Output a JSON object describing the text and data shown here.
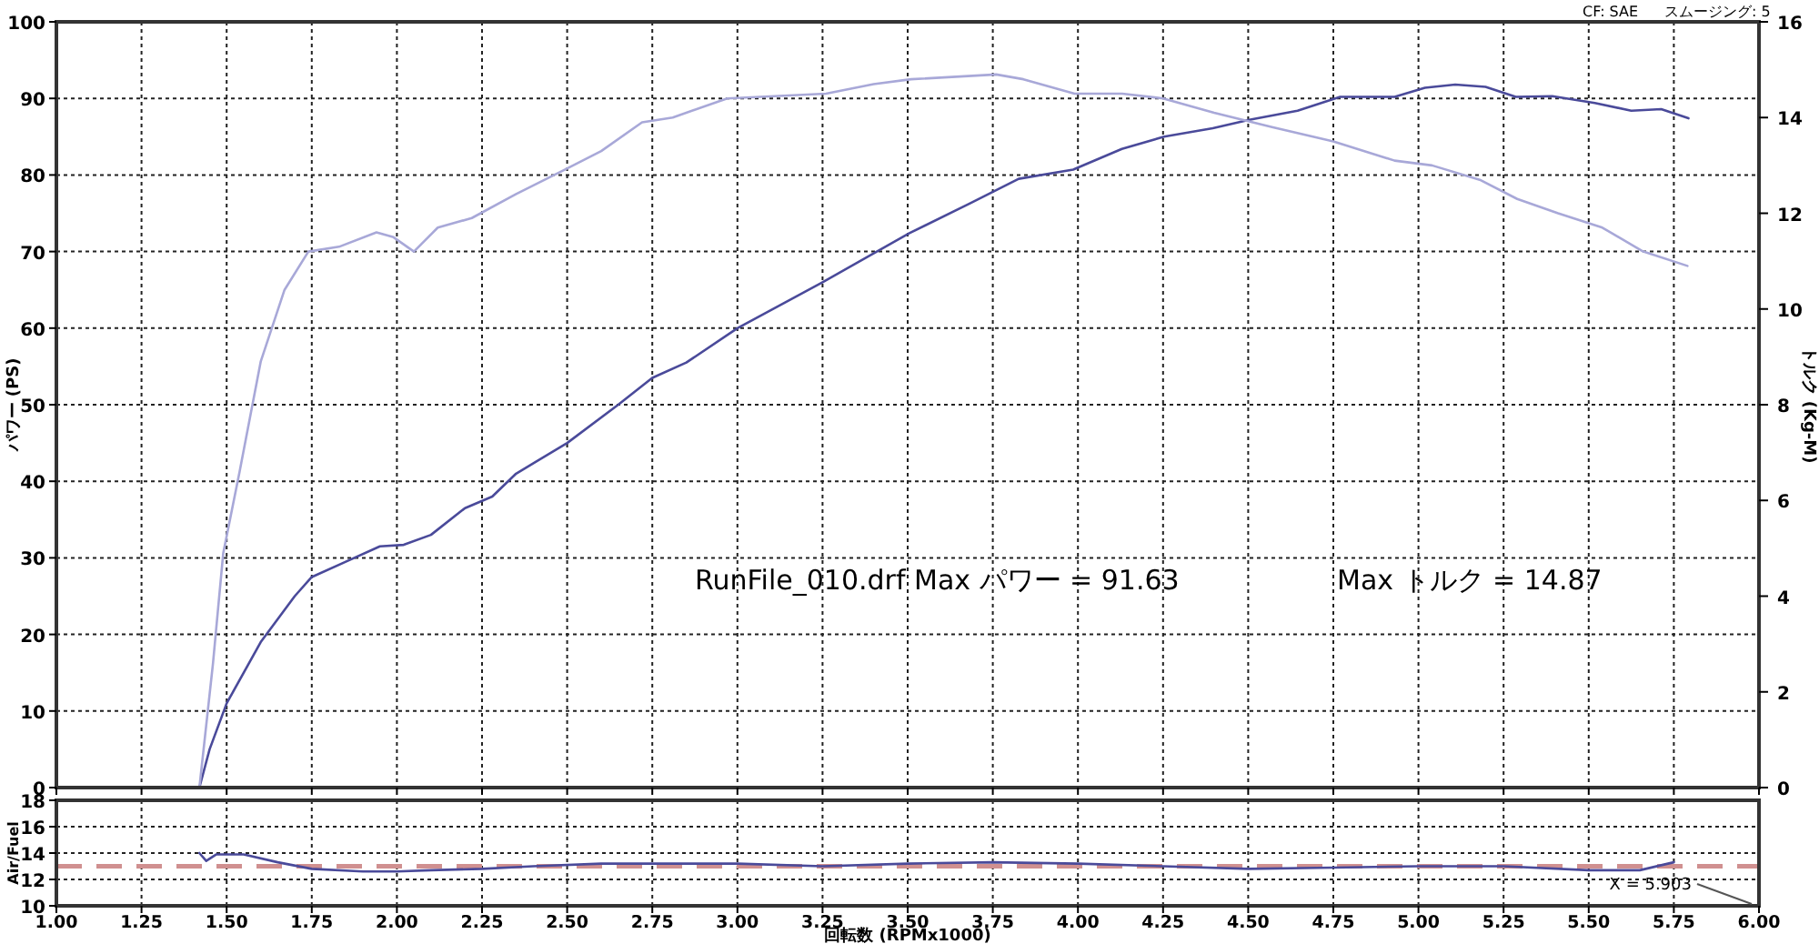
{
  "chart_data": [
    {
      "type": "line",
      "ylabel": "パワー (PS)",
      "y2label": "トルク (Kg-M)",
      "annotations": [
        "CF: SAE",
        "スムージング: 5",
        "RunFile_010.drf Max パワー = 91.63",
        "Max トルク = 14.87"
      ],
      "xlim": [
        1,
        6
      ],
      "xticks": [
        1,
        1.25,
        1.5,
        1.75,
        2,
        2.25,
        2.5,
        2.75,
        3,
        3.25,
        3.5,
        3.75,
        4,
        4.25,
        4.5,
        4.75,
        5,
        5.25,
        5.5,
        5.75,
        6
      ],
      "ylim": [
        0,
        100
      ],
      "yticks": [
        0,
        10,
        20,
        30,
        40,
        50,
        60,
        70,
        80,
        90,
        100
      ],
      "y2lim": [
        0,
        16
      ],
      "y2ticks": [
        0,
        2,
        4,
        6,
        8,
        10,
        12,
        14,
        16
      ],
      "tick_labels": "y",
      "grid": true,
      "line_style": "solid",
      "series": [
        {
          "axis": "y",
          "color": "#4a4a9a",
          "x": [
            1.42,
            1.45,
            1.5,
            1.6,
            1.7,
            1.75,
            1.85,
            1.95,
            2.02,
            2.1,
            2.2,
            2.28,
            2.35,
            2.5,
            2.65,
            2.75,
            2.85,
            3.0,
            3.25,
            3.505,
            3.683,
            3.826,
            3.986,
            4.129,
            4.253,
            4.396,
            4.503,
            4.645,
            4.77,
            4.93,
            5.019,
            5.108,
            5.197,
            5.286,
            5.393,
            5.518,
            5.625,
            5.713,
            5.793
          ],
          "values": [
            0,
            5,
            11,
            19,
            25,
            27.5,
            29.5,
            31.5,
            31.7,
            33,
            36.5,
            38,
            41,
            45,
            50,
            53.5,
            55.5,
            60,
            66,
            72.4,
            76.3,
            79.5,
            80.7,
            83.4,
            85,
            86.1,
            87.2,
            88.4,
            90.2,
            90.2,
            91.4,
            91.8,
            91.5,
            90.2,
            90.3,
            89.4,
            88.4,
            88.6,
            87.4
          ]
        },
        {
          "axis": "y2",
          "color": "#a8a8d8",
          "x": [
            1.42,
            1.46,
            1.49,
            1.538,
            1.6,
            1.67,
            1.74,
            1.83,
            1.94,
            1.99,
            2.05,
            2.12,
            2.22,
            2.35,
            2.49,
            2.6,
            2.72,
            2.81,
            2.97,
            3.26,
            3.4,
            3.51,
            3.76,
            3.84,
            3.99,
            4.13,
            4.25,
            4.4,
            4.57,
            4.75,
            4.93,
            5.04,
            5.18,
            5.29,
            5.41,
            5.54,
            5.66,
            5.79
          ],
          "values": [
            0,
            2.6,
            4.9,
            6.6,
            8.9,
            10.4,
            11.2,
            11.3,
            11.6,
            11.5,
            11.2,
            11.7,
            11.9,
            12.4,
            12.9,
            13.3,
            13.9,
            14.0,
            14.4,
            14.5,
            14.7,
            14.8,
            14.9,
            14.8,
            14.5,
            14.5,
            14.4,
            14.1,
            13.8,
            13.5,
            13.1,
            13.0,
            12.7,
            12.3,
            12.0,
            11.7,
            11.2,
            10.9
          ]
        }
      ]
    },
    {
      "type": "line",
      "xlabel": "回転数 (RPMx1000)",
      "ylabel": "Air/Fuel",
      "annotations": [
        "X = 5.903"
      ],
      "xlim": [
        1,
        6
      ],
      "xticks": [
        {
          "value": 1,
          "label": "1.00"
        },
        {
          "value": 1.25,
          "label": "1.25"
        },
        {
          "value": 1.5,
          "label": "1.50"
        },
        {
          "value": 1.75,
          "label": "1.75"
        },
        {
          "value": 2,
          "label": "2.00"
        },
        {
          "value": 2.25,
          "label": "2.25"
        },
        {
          "value": 2.5,
          "label": "2.50"
        },
        {
          "value": 2.75,
          "label": "2.75"
        },
        {
          "value": 3,
          "label": "3.00"
        },
        {
          "value": 3.25,
          "label": "3.25"
        },
        {
          "value": 3.5,
          "label": "3.50"
        },
        {
          "value": 3.75,
          "label": "3.75"
        },
        {
          "value": 4,
          "label": "4.00"
        },
        {
          "value": 4.25,
          "label": "4.25"
        },
        {
          "value": 4.5,
          "label": "4.50"
        },
        {
          "value": 4.75,
          "label": "4.75"
        },
        {
          "value": 5,
          "label": "5.00"
        },
        {
          "value": 5.25,
          "label": "5.25"
        },
        {
          "value": 5.5,
          "label": "5.50"
        },
        {
          "value": 5.75,
          "label": "5.75"
        },
        {
          "value": 6,
          "label": "6.00"
        }
      ],
      "ylim": [
        10,
        18
      ],
      "yticks": [
        10,
        12,
        14,
        16,
        18
      ],
      "grid": true,
      "line_style": "solid",
      "ref_lines": [
        {
          "axis": "y",
          "value": 13,
          "color": "#d09090",
          "line_style": "dashed"
        }
      ],
      "series": [
        {
          "axis": "y",
          "color": "#4a4a9a",
          "x": [
            1.42,
            1.44,
            1.47,
            1.55,
            1.65,
            1.75,
            1.9,
            2.0,
            2.1,
            2.25,
            2.4,
            2.6,
            3.0,
            3.25,
            3.5,
            3.75,
            4.0,
            4.25,
            4.5,
            4.75,
            5.0,
            5.25,
            5.5,
            5.65,
            5.75
          ],
          "values": [
            14,
            13.4,
            13.9,
            13.9,
            13.3,
            12.8,
            12.6,
            12.6,
            12.7,
            12.8,
            13.0,
            13.2,
            13.2,
            13.0,
            13.2,
            13.3,
            13.2,
            13.0,
            12.8,
            12.9,
            13.0,
            13.0,
            12.7,
            12.7,
            13.3
          ]
        }
      ]
    }
  ]
}
